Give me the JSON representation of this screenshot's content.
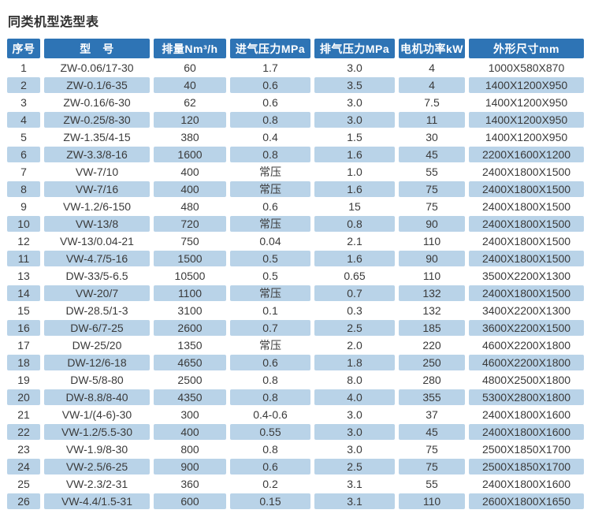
{
  "title": "同类机型选型表",
  "colors": {
    "header_bg": "#2e74b5",
    "header_text": "#ffffff",
    "band_row_bg": "#b9d3e8",
    "body_text": "#3a3a3a",
    "title_text": "#2f2f2f",
    "page_bg": "#ffffff"
  },
  "table": {
    "columns": [
      "序号",
      "型　号",
      "排量Nm³/h",
      "进气压力MPa",
      "排气压力MPa",
      "电机功率kW",
      "外形尺寸mm"
    ],
    "rows": [
      [
        "1",
        "ZW-0.06/17-30",
        "60",
        "1.7",
        "3.0",
        "4",
        "1000X580X870"
      ],
      [
        "2",
        "ZW-0.1/6-35",
        "40",
        "0.6",
        "3.5",
        "4",
        "1400X1200X950"
      ],
      [
        "3",
        "ZW-0.16/6-30",
        "62",
        "0.6",
        "3.0",
        "7.5",
        "1400X1200X950"
      ],
      [
        "4",
        "ZW-0.25/8-30",
        "120",
        "0.8",
        "3.0",
        "11",
        "1400X1200X950"
      ],
      [
        "5",
        "ZW-1.35/4-15",
        "380",
        "0.4",
        "1.5",
        "30",
        "1400X1200X950"
      ],
      [
        "6",
        "ZW-3.3/8-16",
        "1600",
        "0.8",
        "1.6",
        "45",
        "2200X1600X1200"
      ],
      [
        "7",
        "VW-7/10",
        "400",
        "常压",
        "1.0",
        "55",
        "2400X1800X1500"
      ],
      [
        "8",
        "VW-7/16",
        "400",
        "常压",
        "1.6",
        "75",
        "2400X1800X1500"
      ],
      [
        "9",
        "VW-1.2/6-150",
        "480",
        "0.6",
        "15",
        "75",
        "2400X1800X1500"
      ],
      [
        "10",
        "VW-13/8",
        "720",
        "常压",
        "0.8",
        "90",
        "2400X1800X1500"
      ],
      [
        "12",
        "VW-13/0.04-21",
        "750",
        "0.04",
        "2.1",
        "110",
        "2400X1800X1500"
      ],
      [
        "11",
        "VW-4.7/5-16",
        "1500",
        "0.5",
        "1.6",
        "90",
        "2400X1800X1500"
      ],
      [
        "13",
        "DW-33/5-6.5",
        "10500",
        "0.5",
        "0.65",
        "110",
        "3500X2200X1300"
      ],
      [
        "14",
        "VW-20/7",
        "1100",
        "常压",
        "0.7",
        "132",
        "2400X1800X1500"
      ],
      [
        "15",
        "DW-28.5/1-3",
        "3100",
        "0.1",
        "0.3",
        "132",
        "3400X2200X1300"
      ],
      [
        "16",
        "DW-6/7-25",
        "2600",
        "0.7",
        "2.5",
        "185",
        "3600X2200X1500"
      ],
      [
        "17",
        "DW-25/20",
        "1350",
        "常压",
        "2.0",
        "220",
        "4600X2200X1800"
      ],
      [
        "18",
        "DW-12/6-18",
        "4650",
        "0.6",
        "1.8",
        "250",
        "4600X2200X1800"
      ],
      [
        "19",
        "DW-5/8-80",
        "2500",
        "0.8",
        "8.0",
        "280",
        "4800X2500X1800"
      ],
      [
        "20",
        "DW-8.8/8-40",
        "4350",
        "0.8",
        "4.0",
        "355",
        "5300X2800X1800"
      ],
      [
        "21",
        "VW-1/(4-6)-30",
        "300",
        "0.4-0.6",
        "3.0",
        "37",
        "2400X1800X1600"
      ],
      [
        "22",
        "VW-1.2/5.5-30",
        "400",
        "0.55",
        "3.0",
        "45",
        "2400X1800X1600"
      ],
      [
        "23",
        "VW-1.9/8-30",
        "800",
        "0.8",
        "3.0",
        "75",
        "2500X1850X1700"
      ],
      [
        "24",
        "VW-2.5/6-25",
        "900",
        "0.6",
        "2.5",
        "75",
        "2500X1850X1700"
      ],
      [
        "25",
        "VW-2.3/2-31",
        "360",
        "0.2",
        "3.1",
        "55",
        "2400X1800X1600"
      ],
      [
        "26",
        "VW-4.4/1.5-31",
        "600",
        "0.15",
        "3.1",
        "110",
        "2600X1800X1650"
      ]
    ]
  }
}
